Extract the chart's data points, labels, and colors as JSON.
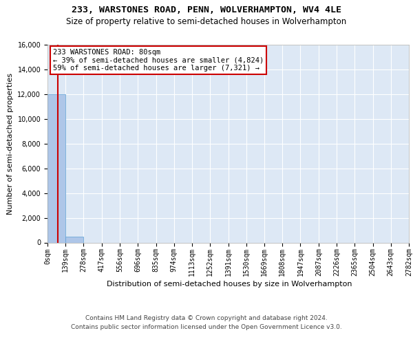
{
  "title_line1": "233, WARSTONES ROAD, PENN, WOLVERHAMPTON, WV4 4LE",
  "title_line2": "Size of property relative to semi-detached houses in Wolverhampton",
  "xlabel": "Distribution of semi-detached houses by size in Wolverhampton",
  "ylabel": "Number of semi-detached properties",
  "footer_line1": "Contains HM Land Registry data © Crown copyright and database right 2024.",
  "footer_line2": "Contains public sector information licensed under the Open Government Licence v3.0.",
  "annotation_title": "233 WARSTONES ROAD: 80sqm",
  "annotation_line1": "← 39% of semi-detached houses are smaller (4,824)",
  "annotation_line2": "59% of semi-detached houses are larger (7,321) →",
  "property_size_sqm": 80,
  "bin_edges": [
    0,
    139,
    278,
    417,
    556,
    696,
    835,
    974,
    1113,
    1252,
    1391,
    1530,
    1669,
    1808,
    1947,
    2087,
    2226,
    2365,
    2504,
    2643,
    2782
  ],
  "bin_counts": [
    12000,
    450,
    0,
    0,
    0,
    0,
    0,
    0,
    0,
    0,
    0,
    0,
    0,
    0,
    0,
    0,
    0,
    0,
    0,
    0
  ],
  "bar_color": "#aec6e8",
  "bar_edge_color": "#5a9fd4",
  "property_line_color": "#cc0000",
  "annotation_box_color": "#cc0000",
  "background_color": "#dde8f5",
  "ylim": [
    0,
    16000
  ],
  "yticks": [
    0,
    2000,
    4000,
    6000,
    8000,
    10000,
    12000,
    14000,
    16000
  ],
  "grid_color": "#ffffff",
  "title_fontsize": 9.5,
  "subtitle_fontsize": 8.5,
  "ylabel_fontsize": 8,
  "xlabel_fontsize": 8,
  "tick_fontsize": 7,
  "annotation_fontsize": 7.5,
  "footer_fontsize": 6.5
}
